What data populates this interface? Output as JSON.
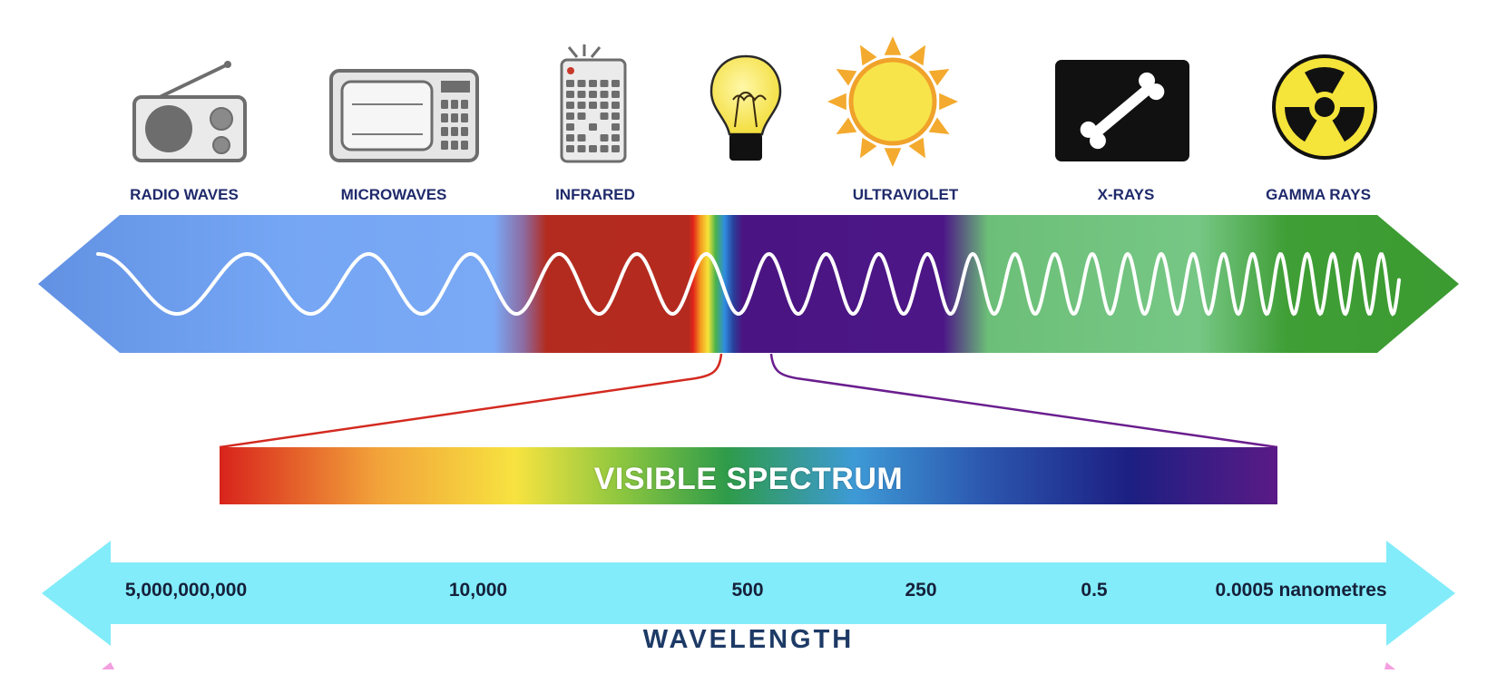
{
  "bands": [
    {
      "id": "radio",
      "label": "RADIO WAVES",
      "icon": "radio-icon"
    },
    {
      "id": "microwave",
      "label": "MICROWAVES",
      "icon": "microwave-oven-icon"
    },
    {
      "id": "infrared",
      "label": "INFRARED",
      "icon": "remote-control-icon"
    },
    {
      "id": "visible",
      "label": "",
      "icon": "light-bulb-icon"
    },
    {
      "id": "ultraviolet",
      "label": "ULTRAVIOLET",
      "icon": "sun-icon"
    },
    {
      "id": "xray",
      "label": "X-RAYS",
      "icon": "bone-xray-icon"
    },
    {
      "id": "gamma",
      "label": "GAMMA RAYS",
      "icon": "radiation-icon"
    }
  ],
  "visible_spectrum": {
    "label": "VISIBLE SPECTRUM"
  },
  "wavelength": {
    "title": "WAVELENGTH",
    "ticks": [
      "5,000,000,000",
      "10,000",
      "500",
      "250",
      "0.5",
      "0.0005 nanometres"
    ]
  },
  "colors": {
    "radio": "#6f9ff0",
    "infrared": "#b42a1e",
    "ultraviolet": "#4a1582",
    "xray": "#6fc07a",
    "gamma": "#3e9e33",
    "arrow": "#82ecfa",
    "label": "#1f2a6b"
  }
}
